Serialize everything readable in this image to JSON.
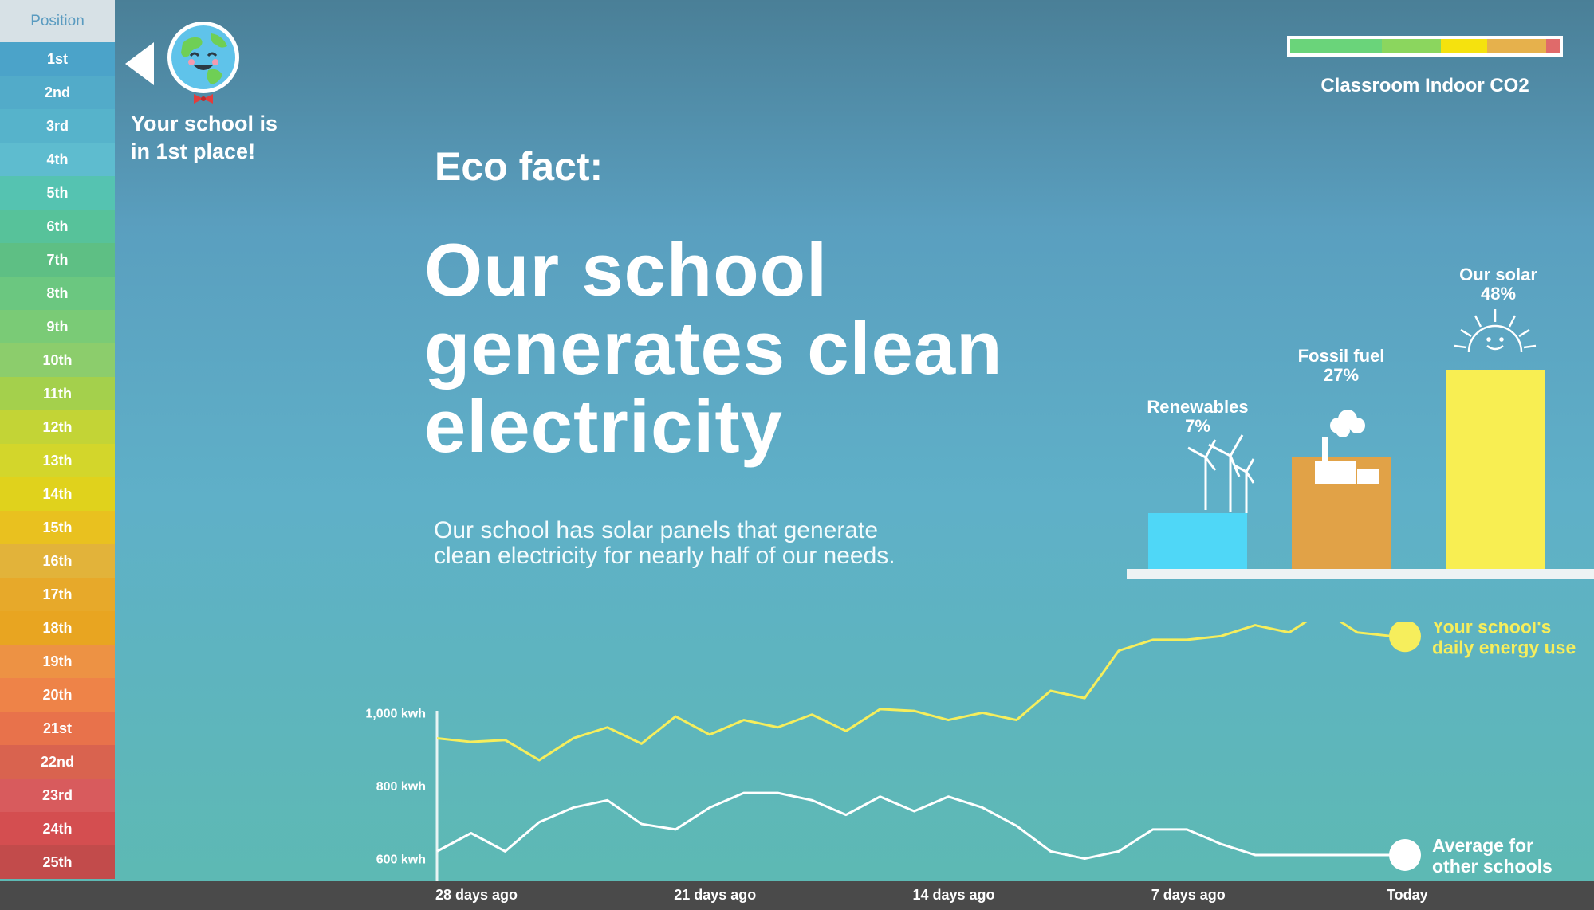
{
  "sidebar": {
    "header": "Position",
    "positions": [
      "1st",
      "2nd",
      "3rd",
      "4th",
      "5th",
      "6th",
      "7th",
      "8th",
      "9th",
      "10th",
      "11th",
      "12th",
      "13th",
      "14th",
      "15th",
      "16th",
      "17th",
      "18th",
      "19th",
      "20th",
      "21st",
      "22nd",
      "23rd",
      "24th",
      "25th"
    ],
    "colors": [
      "#4ba3c9",
      "#52abc9",
      "#56b3cb",
      "#5ebccf",
      "#55c3b1",
      "#57c29a",
      "#5ebf84",
      "#6bc780",
      "#7acb76",
      "#8ccd6c",
      "#a4d04c",
      "#c3d436",
      "#d3d62b",
      "#e0d21c",
      "#e9c11f",
      "#e2b33a",
      "#e7a92a",
      "#e8a521",
      "#ed9244",
      "#ee8348",
      "#e8724b",
      "#d9634f",
      "#d85b5d",
      "#d44e50",
      "#c24b4b"
    ]
  },
  "back_icon": "back-arrow-icon",
  "globe_icon": "smiling-globe-icon",
  "place_message": {
    "line1": "Your school is",
    "line2": "in 1st place!"
  },
  "co2": {
    "label": "Classroom Indoor CO2",
    "segments": [
      {
        "color": "#6ad47a",
        "fraction": 0.34
      },
      {
        "color": "#8bd65e",
        "fraction": 0.22
      },
      {
        "color": "#f5e20e",
        "fraction": 0.17
      },
      {
        "color": "#e6b14c",
        "fraction": 0.22
      },
      {
        "color": "#e06a6a",
        "fraction": 0.05
      }
    ]
  },
  "eco_fact": {
    "label": "Eco fact:",
    "headline_line1": "Our school",
    "headline_line2": "generates clean",
    "headline_line3": "electricity",
    "desc_line1": "Our school has solar panels that generate",
    "desc_line2": "clean electricity for nearly half of our needs."
  },
  "energy_mix": {
    "type": "bar",
    "categories": [
      {
        "name": "Renewables",
        "pct_label": "7%",
        "value": 7,
        "color": "#4fd7f7",
        "icon": "wind-turbines-icon"
      },
      {
        "name": "Fossil fuel",
        "pct_label": "27%",
        "value": 27,
        "color": "#e1a247",
        "icon": "factory-icon"
      },
      {
        "name": "Our solar",
        "pct_label": "48%",
        "value": 48,
        "color": "#f8ee52",
        "icon": "smiling-sun-icon"
      }
    ]
  },
  "chart_data": {
    "type": "line",
    "x_labels": [
      "28 days ago",
      "21 days ago",
      "14 days ago",
      "7 days ago",
      "Today"
    ],
    "y_tick_labels": [
      "1,000 kwh",
      "800 kwh",
      "600 kwh"
    ],
    "y_ticks": [
      1000,
      800,
      600
    ],
    "ylim": [
      540,
      1250
    ],
    "x": [
      -28,
      -27,
      -26,
      -25,
      -24,
      -23,
      -22,
      -21,
      -20,
      -19,
      -18,
      -17,
      -16,
      -15,
      -14,
      -13,
      -12,
      -11,
      -10,
      -9,
      -8,
      -7,
      -6,
      -5,
      -4,
      -3,
      -2,
      -1,
      0
    ],
    "series": [
      {
        "name": "Your school's daily energy use",
        "label_line1": "Your school's",
        "label_line2": "daily energy use",
        "color": "#f6ee5c",
        "values": [
          930,
          920,
          925,
          870,
          930,
          960,
          915,
          990,
          940,
          980,
          960,
          995,
          950,
          1010,
          1005,
          980,
          1000,
          980,
          1060,
          1040,
          1170,
          1200,
          1200,
          1210,
          1240,
          1220,
          1280,
          1220,
          1210
        ]
      },
      {
        "name": "Average for other schools",
        "label_line1": "Average for",
        "label_line2": "other schools",
        "color": "#ffffff",
        "values": [
          620,
          670,
          620,
          700,
          740,
          760,
          695,
          680,
          740,
          780,
          780,
          760,
          720,
          770,
          730,
          770,
          740,
          690,
          620,
          600,
          620,
          680,
          680,
          640,
          610,
          610,
          610,
          610,
          610
        ]
      }
    ]
  }
}
